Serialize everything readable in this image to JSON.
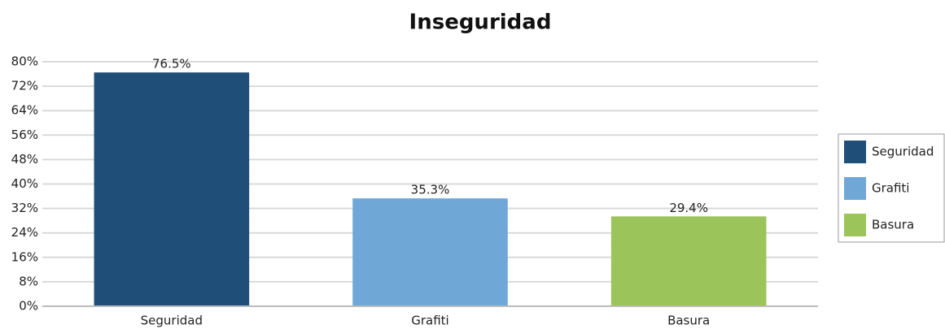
{
  "chart_data": {
    "type": "bar",
    "title": "Inseguridad",
    "categories": [
      "Seguridad",
      "Grafiti",
      "Basura"
    ],
    "values": [
      76.5,
      35.3,
      29.4
    ],
    "value_labels": [
      "76.5%",
      "35.3%",
      "29.4%"
    ],
    "colors": [
      "#1f4e79",
      "#6fa8d6",
      "#9bc45a"
    ],
    "ylim": [
      0,
      80
    ],
    "yticks": [
      {
        "value": 0,
        "label": "0%"
      },
      {
        "value": 8,
        "label": "8%"
      },
      {
        "value": 16,
        "label": "16%"
      },
      {
        "value": 24,
        "label": "24%"
      },
      {
        "value": 32,
        "label": "32%"
      },
      {
        "value": 40,
        "label": "40%"
      },
      {
        "value": 48,
        "label": "48%"
      },
      {
        "value": 56,
        "label": "56%"
      },
      {
        "value": 64,
        "label": "64%"
      },
      {
        "value": 72,
        "label": "72%"
      },
      {
        "value": 80,
        "label": "80%"
      }
    ],
    "grid": true,
    "legend": "right"
  }
}
